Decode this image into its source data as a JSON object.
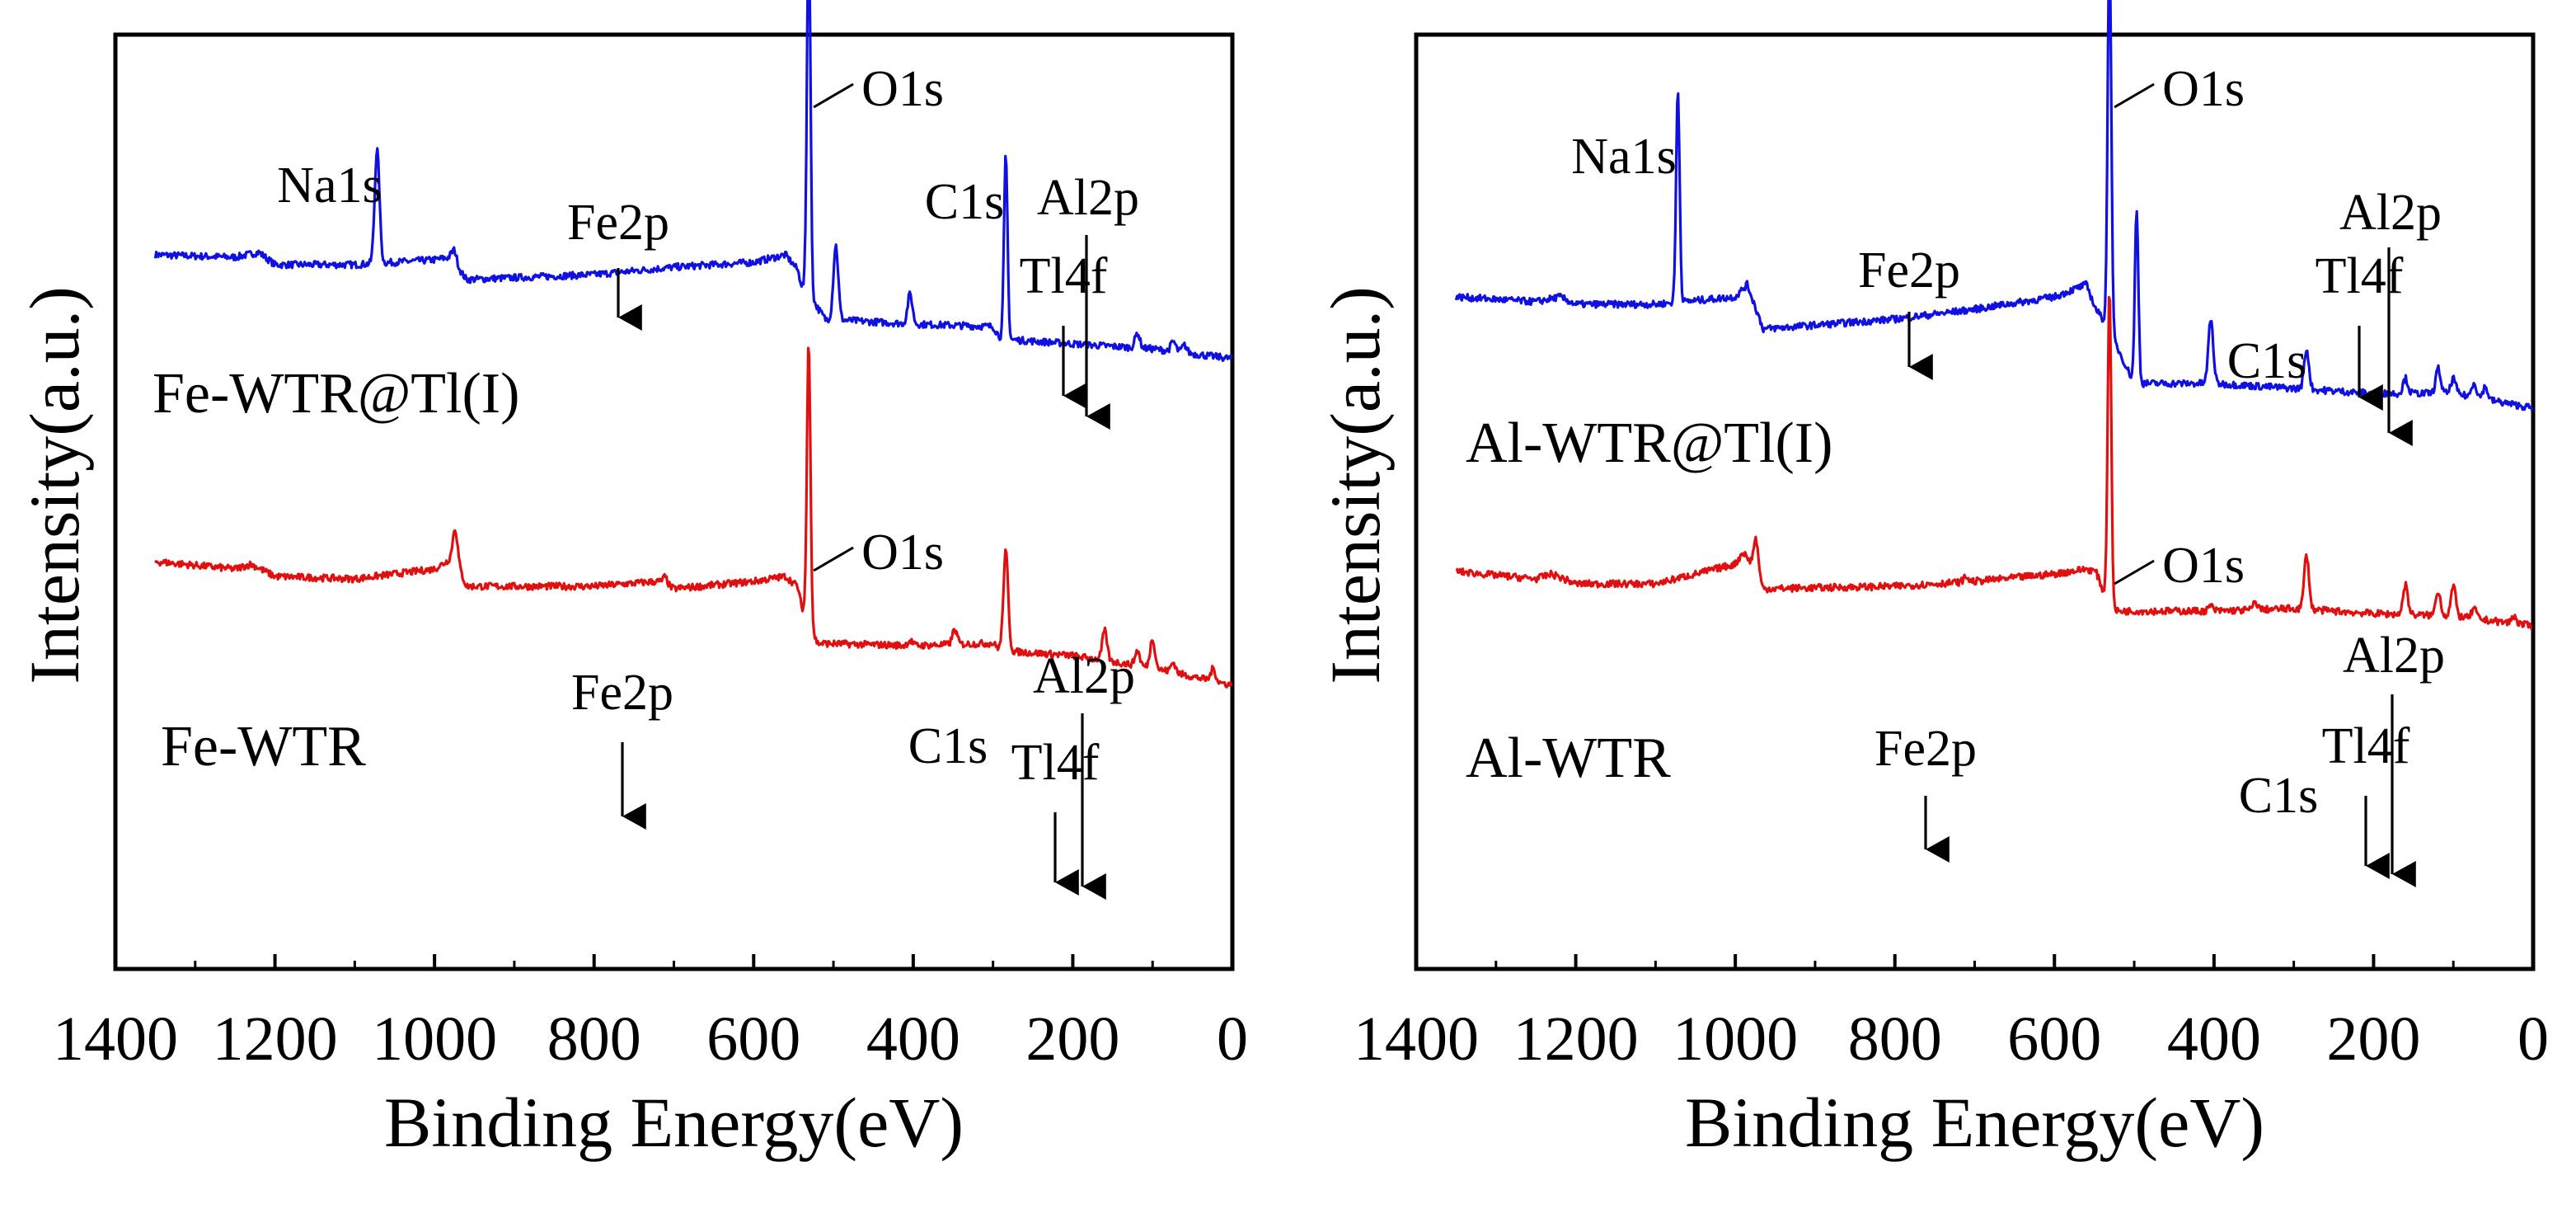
{
  "chart_data": [
    {
      "type": "line",
      "panel": "left",
      "xlabel": "Binding Energy(eV)",
      "ylabel": "Intensity(a.u.)",
      "xlim": [
        1400,
        0
      ],
      "x_reversed": true,
      "x_ticks": [
        1400,
        1200,
        1000,
        800,
        600,
        400,
        200,
        0
      ],
      "x_tick_labels": [
        "1400",
        "1200",
        "1000",
        "800",
        "600",
        "400",
        "200",
        "0"
      ],
      "y_ticks": false,
      "series": [
        {
          "name": "Fe-WTR@Tl(I)",
          "label": "Fe-WTR@Tl(I)",
          "color": "#1010e0",
          "baseline": [
            [
              1350,
              0.72
            ],
            [
              1250,
              0.71
            ],
            [
              1220,
              0.73
            ],
            [
              1200,
              0.68
            ],
            [
              1100,
              0.68
            ],
            [
              1000,
              0.7
            ],
            [
              980,
              0.71
            ],
            [
              960,
              0.62
            ],
            [
              800,
              0.64
            ],
            [
              700,
              0.67
            ],
            [
              600,
              0.69
            ],
            [
              560,
              0.72
            ],
            [
              545,
              0.66
            ],
            [
              540,
              0.6
            ],
            [
              510,
              0.46
            ],
            [
              400,
              0.44
            ],
            [
              300,
              0.43
            ],
            [
              290,
              0.38
            ],
            [
              200,
              0.36
            ],
            [
              100,
              0.34
            ],
            [
              0,
              0.3
            ]
          ],
          "peaks": [
            {
              "x": 1072,
              "h": 0.46
            },
            {
              "x": 975,
              "h": 0.05
            },
            {
              "x": 531,
              "h": 1.5
            },
            {
              "x": 497,
              "h": 0.3
            },
            {
              "x": 404,
              "h": 0.12
            },
            {
              "x": 284,
              "h": 0.74
            },
            {
              "x": 119,
              "h": 0.06
            },
            {
              "x": 74,
              "h": 0.04
            },
            {
              "x": 60,
              "h": 0.03
            }
          ],
          "annotations": [
            {
              "text": "O1s",
              "x": 531,
              "style": "leader"
            },
            {
              "text": "Na1s",
              "x": 1072,
              "style": "label"
            },
            {
              "text": "Fe2p",
              "x": 711,
              "style": "arrow"
            },
            {
              "text": "C1s",
              "x": 284,
              "style": "label"
            },
            {
              "text": "Tl4f",
              "x": 119,
              "style": "arrow"
            },
            {
              "text": "Al2p",
              "x": 74,
              "style": "arrow"
            }
          ]
        },
        {
          "name": "Fe-WTR",
          "label": "Fe-WTR",
          "color": "#e01010",
          "baseline": [
            [
              1350,
              -0.52
            ],
            [
              1250,
              -0.55
            ],
            [
              1230,
              -0.53
            ],
            [
              1200,
              -0.58
            ],
            [
              1100,
              -0.59
            ],
            [
              1000,
              -0.55
            ],
            [
              975,
              -0.5
            ],
            [
              960,
              -0.62
            ],
            [
              800,
              -0.62
            ],
            [
              720,
              -0.6
            ],
            [
              700,
              -0.63
            ],
            [
              600,
              -0.6
            ],
            [
              560,
              -0.58
            ],
            [
              545,
              -0.62
            ],
            [
              540,
              -0.7
            ],
            [
              520,
              -0.85
            ],
            [
              400,
              -0.86
            ],
            [
              300,
              -0.85
            ],
            [
              290,
              -0.88
            ],
            [
              200,
              -0.9
            ],
            [
              100,
              -0.95
            ],
            [
              0,
              -1.02
            ]
          ],
          "peaks": [
            {
              "x": 531,
              "h": 1.14
            },
            {
              "x": 974,
              "h": 0.12
            },
            {
              "x": 711,
              "h": 0.03
            },
            {
              "x": 404,
              "h": 0.02
            },
            {
              "x": 348,
              "h": 0.06
            },
            {
              "x": 284,
              "h": 0.4
            },
            {
              "x": 160,
              "h": 0.12
            },
            {
              "x": 119,
              "h": 0.06
            },
            {
              "x": 100,
              "h": 0.12
            },
            {
              "x": 74,
              "h": 0.04
            },
            {
              "x": 24,
              "h": 0.05
            }
          ],
          "annotations": [
            {
              "text": "O1s",
              "x": 531,
              "style": "leader"
            },
            {
              "text": "Fe2p",
              "x": 711,
              "style": "arrow"
            },
            {
              "text": "C1s",
              "x": 284,
              "style": "label"
            },
            {
              "text": "Tl4f",
              "x": 119,
              "style": "arrow"
            },
            {
              "text": "Al2p",
              "x": 74,
              "style": "arrow"
            }
          ]
        }
      ]
    },
    {
      "type": "line",
      "panel": "right",
      "xlabel": "Binding Energy(eV)",
      "ylabel": "Intensity(a.u.)",
      "xlim": [
        1400,
        0
      ],
      "x_reversed": true,
      "x_ticks": [
        1400,
        1200,
        1000,
        800,
        600,
        400,
        200,
        0
      ],
      "x_tick_labels": [
        "1400",
        "1200",
        "1000",
        "800",
        "600",
        "400",
        "200",
        "0"
      ],
      "y_ticks": false,
      "series": [
        {
          "name": "Al-WTR@Tl(I)",
          "label": "Al-WTR@Tl(I)",
          "color": "#1010e0",
          "baseline": [
            [
              1350,
              0.55
            ],
            [
              1250,
              0.53
            ],
            [
              1220,
              0.55
            ],
            [
              1200,
              0.52
            ],
            [
              1100,
              0.52
            ],
            [
              1000,
              0.55
            ],
            [
              985,
              0.6
            ],
            [
              965,
              0.42
            ],
            [
              800,
              0.46
            ],
            [
              700,
              0.5
            ],
            [
              600,
              0.55
            ],
            [
              560,
              0.6
            ],
            [
              548,
              0.5
            ],
            [
              535,
              0.44
            ],
            [
              500,
              0.2
            ],
            [
              400,
              0.2
            ],
            [
              300,
              0.18
            ],
            [
              200,
              0.16
            ],
            [
              100,
              0.16
            ],
            [
              0,
              0.1
            ]
          ],
          "peaks": [
            {
              "x": 1072,
              "h": 0.86
            },
            {
              "x": 531,
              "h": 1.6
            },
            {
              "x": 497,
              "h": 0.7
            },
            {
              "x": 404,
              "h": 0.26
            },
            {
              "x": 284,
              "h": 0.16
            },
            {
              "x": 160,
              "h": 0.06
            },
            {
              "x": 119,
              "h": 0.1
            },
            {
              "x": 100,
              "h": 0.06
            },
            {
              "x": 74,
              "h": 0.06
            },
            {
              "x": 60,
              "h": 0.05
            }
          ],
          "annotations": [
            {
              "text": "O1s",
              "x": 531,
              "style": "leader"
            },
            {
              "text": "Na1s",
              "x": 1072,
              "style": "label"
            },
            {
              "text": "Fe2p",
              "x": 711,
              "style": "arrow"
            },
            {
              "text": "C1s",
              "x": 284,
              "style": "label"
            },
            {
              "text": "Tl4f",
              "x": 119,
              "style": "arrow"
            },
            {
              "text": "Al2p",
              "x": 74,
              "style": "arrow"
            }
          ]
        },
        {
          "name": "Al-WTR",
          "label": "Al-WTR",
          "color": "#e01010",
          "baseline": [
            [
              1350,
              -0.56
            ],
            [
              1250,
              -0.59
            ],
            [
              1230,
              -0.57
            ],
            [
              1200,
              -0.61
            ],
            [
              1100,
              -0.61
            ],
            [
              1000,
              -0.53
            ],
            [
              990,
              -0.48
            ],
            [
              980,
              -0.53
            ],
            [
              965,
              -0.63
            ],
            [
              800,
              -0.62
            ],
            [
              700,
              -0.6
            ],
            [
              600,
              -0.57
            ],
            [
              560,
              -0.55
            ],
            [
              548,
              -0.56
            ],
            [
              540,
              -0.63
            ],
            [
              525,
              -0.72
            ],
            [
              400,
              -0.72
            ],
            [
              300,
              -0.71
            ],
            [
              200,
              -0.73
            ],
            [
              100,
              -0.74
            ],
            [
              0,
              -0.78
            ]
          ],
          "peaks": [
            {
              "x": 531,
              "h": 1.28
            },
            {
              "x": 974,
              "h": 0.14
            },
            {
              "x": 711,
              "h": 0.02
            },
            {
              "x": 404,
              "h": 0.02
            },
            {
              "x": 348,
              "h": 0.03
            },
            {
              "x": 284,
              "h": 0.22
            },
            {
              "x": 160,
              "h": 0.12
            },
            {
              "x": 119,
              "h": 0.1
            },
            {
              "x": 100,
              "h": 0.12
            },
            {
              "x": 74,
              "h": 0.04
            },
            {
              "x": 24,
              "h": 0.03
            }
          ],
          "annotations": [
            {
              "text": "O1s",
              "x": 531,
              "style": "leader"
            },
            {
              "text": "Fe2p",
              "x": 711,
              "style": "arrow"
            },
            {
              "text": "C1s",
              "x": 284,
              "style": "label"
            },
            {
              "text": "Tl4f",
              "x": 119,
              "style": "arrow"
            },
            {
              "text": "Al2p",
              "x": 74,
              "style": "arrow"
            }
          ]
        }
      ]
    }
  ]
}
